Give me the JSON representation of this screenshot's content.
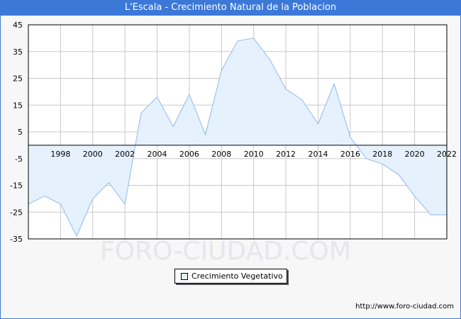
{
  "header": {
    "title": "L'Escala - Crecimiento Natural de la Poblacion"
  },
  "watermark": "FORO-CIUDAD.COM",
  "footer": {
    "url": "http://www.foro-ciudad.com"
  },
  "colors": {
    "title_bg": "#3c78d8",
    "area_fill": "#e5f1fd",
    "line": "#8fbae8",
    "grid": "#c8c8c8",
    "zero_line": "#000000"
  },
  "chart_data": {
    "type": "area",
    "x": [
      1996,
      1997,
      1998,
      1999,
      2000,
      2001,
      2002,
      2003,
      2004,
      2005,
      2006,
      2007,
      2008,
      2009,
      2010,
      2011,
      2012,
      2013,
      2014,
      2015,
      2016,
      2017,
      2018,
      2019,
      2020,
      2021,
      2022
    ],
    "series": [
      {
        "name": "Crecimiento Vegetativo",
        "values": [
          -22,
          -19,
          -22,
          -34,
          -20,
          -14,
          -22,
          12,
          18,
          7,
          19,
          4,
          28,
          39,
          40,
          32,
          21,
          17,
          8,
          23,
          3,
          -5,
          -7,
          -11,
          -19,
          -26,
          -26
        ]
      }
    ],
    "x_tick_labels": [
      "1998",
      "2000",
      "2002",
      "2004",
      "2006",
      "2008",
      "2010",
      "2012",
      "2014",
      "2016",
      "2018",
      "2020",
      "2022"
    ],
    "y_tick_labels": [
      "45",
      "35",
      "25",
      "15",
      "5",
      "-5",
      "-15",
      "-25",
      "-35"
    ],
    "xlim": [
      1996,
      2022
    ],
    "ylim": [
      -35,
      45
    ],
    "grid": true,
    "legend": "bottom-center"
  }
}
